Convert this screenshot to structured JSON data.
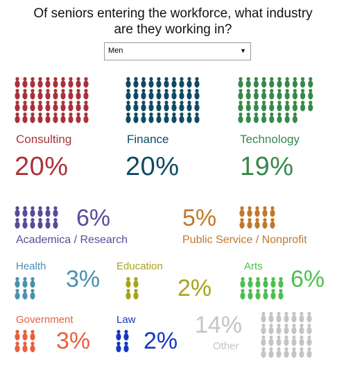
{
  "header": {
    "title_line1": "Of seniors entering the workforce, what industry",
    "title_line2": "are they working in?"
  },
  "filter": {
    "selected": "Men"
  },
  "colors": {
    "consulting": "#a8323a",
    "finance": "#0f4a63",
    "technology": "#36894a",
    "academica": "#5a4b96",
    "public_service": "#c0782c",
    "health": "#4a90b0",
    "education": "#aaa21a",
    "arts": "#4cc04f",
    "government": "#e8603c",
    "law": "#1537c4",
    "other": "#c4c4c4"
  },
  "chart_data": {
    "type": "pictograph",
    "title": "Of seniors entering the workforce, what industry are they working in?",
    "filter": "Men",
    "categories": [
      "Consulting",
      "Finance",
      "Technology",
      "Academica / Research",
      "Public Service / Nonprofit",
      "Health",
      "Education",
      "Arts",
      "Government",
      "Law",
      "Other"
    ],
    "values": [
      20,
      20,
      19,
      6,
      5,
      3,
      2,
      6,
      3,
      2,
      14
    ],
    "unit": "%",
    "icons_per_category": [
      40,
      40,
      38,
      12,
      10,
      6,
      4,
      12,
      6,
      4,
      28
    ]
  },
  "labels": {
    "consulting": {
      "name": "Consulting",
      "pct": "20%"
    },
    "finance": {
      "name": "Finance",
      "pct": "20%"
    },
    "technology": {
      "name": "Technology",
      "pct": "19%"
    },
    "academica": {
      "name": "Academica / Research",
      "pct": "6%"
    },
    "public_service": {
      "name": "Public Service / Nonprofit",
      "pct": "5%"
    },
    "health": {
      "name": "Health",
      "pct": "3%"
    },
    "education": {
      "name": "Education",
      "pct": "2%"
    },
    "arts": {
      "name": "Arts",
      "pct": "6%"
    },
    "government": {
      "name": "Government",
      "pct": "3%"
    },
    "law": {
      "name": "Law",
      "pct": "2%"
    },
    "other": {
      "name": "Other",
      "pct": "14%"
    }
  }
}
